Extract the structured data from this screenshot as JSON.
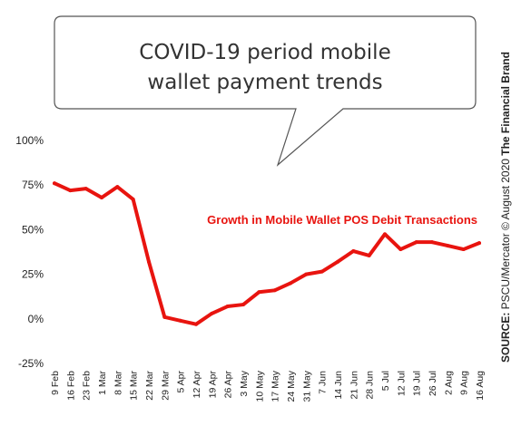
{
  "header": {
    "title_line1": "COVID-19 period mobile",
    "title_line2": "wallet payment trends"
  },
  "source": {
    "label": "SOURCE:",
    "text": " PSCU/Mercator © August 2020 ",
    "brand": "The Financial Brand"
  },
  "colors": {
    "line": "#e8140f",
    "text": "#222222",
    "bubble_border": "#555555"
  },
  "chart_data": {
    "type": "line",
    "title": "COVID-19 period mobile wallet payment trends",
    "xlabel": "",
    "ylabel": "",
    "ylim": [
      -25,
      100
    ],
    "yticks": [
      100,
      75,
      50,
      25,
      0,
      -25
    ],
    "ytick_labels": [
      "100%",
      "75%",
      "50%",
      "25%",
      "0%",
      "-25%"
    ],
    "grid": false,
    "categories": [
      "9 Feb",
      "16 Feb",
      "23 Feb",
      "1 Mar",
      "8 Mar",
      "15 Mar",
      "22 Mar",
      "29 Mar",
      "5 Apr",
      "12 Apr",
      "19 Apr",
      "26 Apr",
      "3 May",
      "10 May",
      "17 May",
      "24 May",
      "31 May",
      "7 Jun",
      "14 Jun",
      "21 Jun",
      "28 Jun",
      "5 Jul",
      "12 Jul",
      "19 Jul",
      "26 Jul",
      "2 Aug",
      "9 Aug",
      "16 Aug"
    ],
    "series": [
      {
        "name": "Growth in Mobile Wallet POS Debit Transactions",
        "values": [
          76,
          72,
          73,
          68,
          74,
          67,
          32,
          1,
          -1,
          -3,
          3,
          7,
          8,
          15,
          16,
          20,
          25,
          26.5,
          32,
          38,
          35.5,
          47.5,
          39,
          43,
          43,
          41,
          39,
          42.5
        ]
      }
    ]
  }
}
